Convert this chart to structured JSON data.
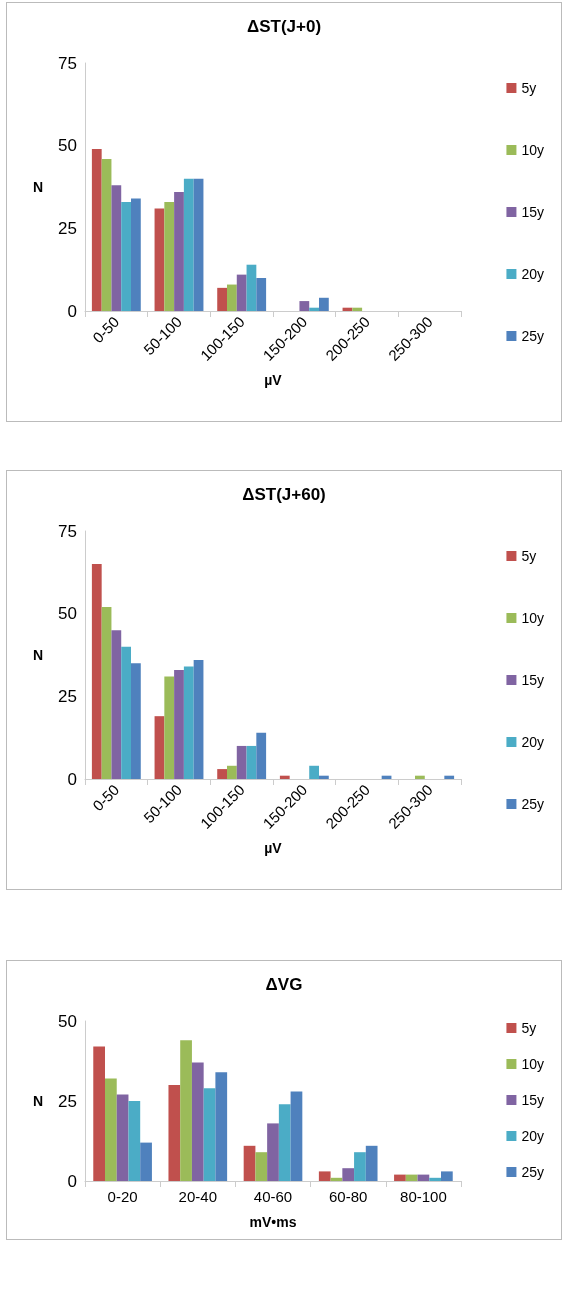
{
  "chart_data": [
    {
      "type": "bar",
      "title": "ΔST(J+0)",
      "xlabel": "µV",
      "ylabel": "N",
      "categories": [
        "0-50",
        "50-100",
        "100-150",
        "150-200",
        "200-250",
        "250-300"
      ],
      "ylim": [
        0,
        75
      ],
      "yticks": [
        0,
        25,
        50,
        75
      ],
      "grid": false,
      "legend": "right",
      "series": [
        {
          "name": "5y",
          "color": "#c0504d",
          "values": [
            49,
            31,
            7,
            0,
            1,
            0
          ]
        },
        {
          "name": "10y",
          "color": "#9bbb59",
          "values": [
            46,
            33,
            8,
            0,
            1,
            0
          ]
        },
        {
          "name": "15y",
          "color": "#8064a2",
          "values": [
            38,
            36,
            11,
            3,
            0,
            0
          ]
        },
        {
          "name": "20y",
          "color": "#4bacc6",
          "values": [
            33,
            40,
            14,
            1,
            0,
            0
          ]
        },
        {
          "name": "25y",
          "color": "#4f81bd",
          "values": [
            34,
            40,
            10,
            4,
            0,
            0
          ]
        }
      ]
    },
    {
      "type": "bar",
      "title": "ΔST(J+60)",
      "xlabel": "µV",
      "ylabel": "N",
      "categories": [
        "0-50",
        "50-100",
        "100-150",
        "150-200",
        "200-250",
        "250-300"
      ],
      "ylim": [
        0,
        75
      ],
      "yticks": [
        0,
        25,
        50,
        75
      ],
      "grid": false,
      "legend": "right",
      "series": [
        {
          "name": "5y",
          "color": "#c0504d",
          "values": [
            65,
            19,
            3,
            1,
            0,
            0
          ]
        },
        {
          "name": "10y",
          "color": "#9bbb59",
          "values": [
            52,
            31,
            4,
            0,
            0,
            1
          ]
        },
        {
          "name": "15y",
          "color": "#8064a2",
          "values": [
            45,
            33,
            10,
            0,
            0,
            0
          ]
        },
        {
          "name": "20y",
          "color": "#4bacc6",
          "values": [
            40,
            34,
            10,
            4,
            0,
            0
          ]
        },
        {
          "name": "25y",
          "color": "#4f81bd",
          "values": [
            35,
            36,
            14,
            1,
            1,
            1
          ]
        }
      ]
    },
    {
      "type": "bar",
      "title": "ΔVG",
      "xlabel": "mV•ms",
      "ylabel": "N",
      "categories": [
        "0-20",
        "20-40",
        "40-60",
        "60-80",
        "80-100"
      ],
      "ylim": [
        0,
        50
      ],
      "yticks": [
        0,
        25,
        50
      ],
      "grid": false,
      "legend": "right",
      "series": [
        {
          "name": "5y",
          "color": "#c0504d",
          "values": [
            42,
            30,
            11,
            3,
            2
          ]
        },
        {
          "name": "10y",
          "color": "#9bbb59",
          "values": [
            32,
            44,
            9,
            1,
            2
          ]
        },
        {
          "name": "15y",
          "color": "#8064a2",
          "values": [
            27,
            37,
            18,
            4,
            2
          ]
        },
        {
          "name": "20y",
          "color": "#4bacc6",
          "values": [
            25,
            29,
            24,
            9,
            1
          ]
        },
        {
          "name": "25y",
          "color": "#4f81bd",
          "values": [
            12,
            34,
            28,
            11,
            3
          ]
        }
      ]
    }
  ]
}
